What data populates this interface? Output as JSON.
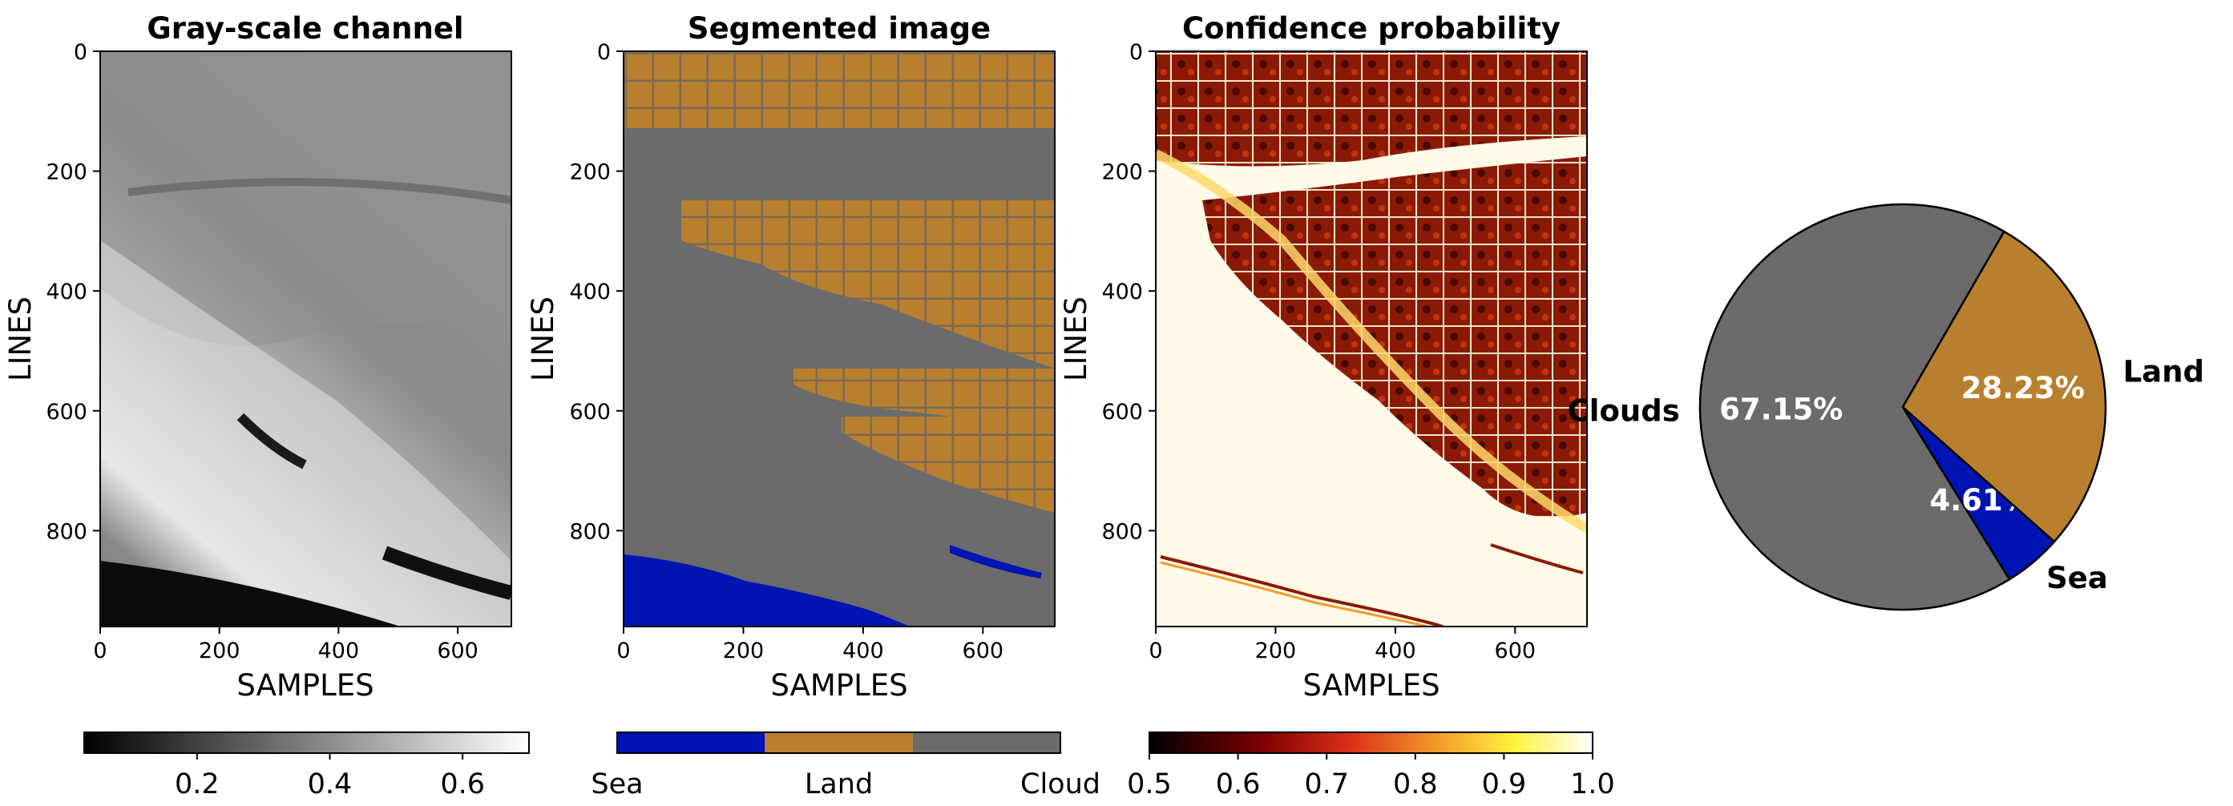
{
  "chart_data": [
    {
      "type": "heatmap",
      "title": "Gray-scale channel",
      "xlabel": "SAMPLES",
      "ylabel": "LINES",
      "xlim": [
        0,
        690
      ],
      "ylim": [
        960,
        0
      ],
      "xticks": [
        "0",
        "200",
        "400",
        "600"
      ],
      "yticks": [
        "0",
        "200",
        "400",
        "600",
        "800"
      ],
      "colormap": "gray",
      "colorbar": {
        "range": [
          0.03,
          0.7
        ],
        "ticks": [
          "0.2",
          "0.4",
          "0.6"
        ]
      }
    },
    {
      "type": "heatmap",
      "title": "Segmented image",
      "xlabel": "SAMPLES",
      "ylabel": "LINES",
      "xlim": [
        0,
        720
      ],
      "ylim": [
        960,
        0
      ],
      "xticks": [
        "0",
        "200",
        "400",
        "600"
      ],
      "yticks": [
        "0",
        "200",
        "400",
        "600",
        "800"
      ],
      "classes": [
        {
          "name": "Sea",
          "color": "#0014b4"
        },
        {
          "name": "Land",
          "color": "#b8802e"
        },
        {
          "name": "Cloud",
          "color": "#6b6b6b"
        }
      ],
      "colorbar": {
        "ticks": [
          "Sea",
          "Land",
          "Cloud"
        ]
      }
    },
    {
      "type": "heatmap",
      "title": "Confidence probability",
      "xlabel": "SAMPLES",
      "ylabel": "LINES",
      "xlim": [
        0,
        720
      ],
      "ylim": [
        960,
        0
      ],
      "xticks": [
        "0",
        "200",
        "400",
        "600"
      ],
      "yticks": [
        "0",
        "200",
        "400",
        "600",
        "800"
      ],
      "colormap": "afmhot",
      "colorbar": {
        "range": [
          0.5,
          1.0
        ],
        "ticks": [
          "0.5",
          "0.6",
          "0.7",
          "0.8",
          "0.9",
          "1.0"
        ]
      }
    },
    {
      "type": "pie",
      "slices": [
        {
          "label": "Clouds",
          "value": 67.15,
          "pct": "67.15%",
          "color": "#6b6b6b"
        },
        {
          "label": "Sea",
          "value": 4.61,
          "pct": "4.61%",
          "color": "#0014b4"
        },
        {
          "label": "Land",
          "value": 28.23,
          "pct": "28.23%",
          "color": "#b8802e"
        }
      ]
    }
  ]
}
